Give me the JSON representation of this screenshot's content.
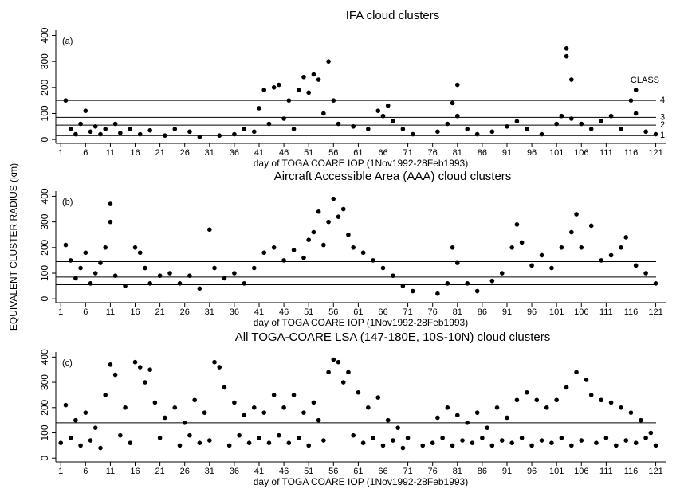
{
  "chart_data": [
    {
      "type": "scatter",
      "title": "IFA cloud clusters",
      "panel_label": "(a)",
      "ylabel": "EQUIVALENT CLUSTER RADIUS (km)",
      "xlabel": "day of TOGA COARE IOP (1Nov1992-28Feb1993)",
      "xlim": [
        0,
        123
      ],
      "ylim": [
        -15,
        420
      ],
      "xticks": [
        1,
        6,
        11,
        16,
        21,
        26,
        31,
        36,
        41,
        46,
        51,
        56,
        61,
        66,
        71,
        76,
        81,
        86,
        91,
        96,
        101,
        106,
        111,
        116,
        121
      ],
      "yticks": [
        0,
        100,
        200,
        300,
        400
      ],
      "hlines": [
        15,
        55,
        85,
        150
      ],
      "hline_labels": [
        "1",
        "2",
        "3",
        "4"
      ],
      "hline_title": "CLASS",
      "color": "#000000",
      "x": [
        2,
        3,
        4,
        5,
        6,
        7,
        8,
        9,
        10,
        12,
        13,
        15,
        17,
        19,
        22,
        24,
        27,
        29,
        33,
        36,
        38,
        40,
        41,
        42,
        43,
        44,
        45,
        46,
        47,
        48,
        49,
        50,
        51,
        52,
        53,
        54,
        55,
        56,
        57,
        60,
        63,
        65,
        66,
        67,
        68,
        70,
        72,
        77,
        79,
        80,
        81,
        81,
        83,
        85,
        88,
        91,
        93,
        95,
        98,
        101,
        102,
        103,
        103,
        104,
        104,
        106,
        108,
        110,
        112,
        114,
        116,
        117,
        117,
        119,
        121
      ],
      "values": [
        150,
        40,
        20,
        60,
        110,
        30,
        50,
        20,
        40,
        60,
        25,
        40,
        20,
        35,
        15,
        40,
        30,
        10,
        15,
        20,
        40,
        30,
        120,
        190,
        60,
        200,
        210,
        80,
        150,
        40,
        190,
        240,
        180,
        250,
        230,
        100,
        300,
        150,
        60,
        50,
        40,
        110,
        90,
        130,
        70,
        40,
        20,
        30,
        60,
        140,
        210,
        90,
        40,
        20,
        30,
        50,
        70,
        40,
        20,
        60,
        90,
        350,
        320,
        230,
        80,
        60,
        40,
        70,
        90,
        40,
        150,
        190,
        100,
        30,
        20
      ]
    },
    {
      "type": "scatter",
      "title": "Aircraft Accessible Area (AAA) cloud clusters",
      "panel_label": "(b)",
      "xlabel": "day of TOGA COARE IOP (1Nov1992-28Feb1993)",
      "xlim": [
        0,
        123
      ],
      "ylim": [
        -15,
        420
      ],
      "xticks": [
        1,
        6,
        11,
        16,
        21,
        26,
        31,
        36,
        41,
        46,
        51,
        56,
        61,
        66,
        71,
        76,
        81,
        86,
        91,
        96,
        101,
        106,
        111,
        116,
        121
      ],
      "yticks": [
        0,
        100,
        200,
        300,
        400
      ],
      "hlines": [
        55,
        85,
        145
      ],
      "color": "#000000",
      "x": [
        2,
        3,
        4,
        5,
        6,
        7,
        8,
        9,
        10,
        11,
        11,
        12,
        14,
        16,
        17,
        18,
        19,
        21,
        23,
        25,
        27,
        29,
        31,
        32,
        34,
        36,
        38,
        40,
        42,
        44,
        46,
        48,
        50,
        51,
        52,
        53,
        54,
        55,
        56,
        57,
        58,
        59,
        60,
        62,
        64,
        66,
        68,
        70,
        72,
        77,
        79,
        80,
        81,
        83,
        85,
        88,
        90,
        92,
        93,
        94,
        96,
        98,
        100,
        102,
        104,
        105,
        106,
        108,
        110,
        112,
        114,
        115,
        117,
        119,
        121
      ],
      "values": [
        210,
        150,
        80,
        120,
        180,
        60,
        100,
        140,
        200,
        370,
        300,
        90,
        50,
        200,
        180,
        120,
        60,
        90,
        100,
        60,
        90,
        40,
        270,
        120,
        80,
        100,
        60,
        120,
        180,
        200,
        150,
        190,
        160,
        230,
        260,
        340,
        210,
        300,
        390,
        320,
        350,
        250,
        200,
        180,
        150,
        120,
        90,
        50,
        30,
        20,
        60,
        200,
        140,
        60,
        30,
        70,
        100,
        200,
        290,
        220,
        130,
        170,
        120,
        200,
        260,
        330,
        200,
        285,
        150,
        170,
        200,
        240,
        130,
        100,
        60
      ]
    },
    {
      "type": "scatter",
      "title": "All TOGA-COARE LSA (147-180E, 10S-10N) cloud clusters",
      "panel_label": "(c)",
      "xlabel": "day of TOGA COARE IOP (1Nov1992-28Feb1993)",
      "xlim": [
        0,
        123
      ],
      "ylim": [
        -15,
        420
      ],
      "xticks": [
        1,
        6,
        11,
        16,
        21,
        26,
        31,
        36,
        41,
        46,
        51,
        56,
        61,
        66,
        71,
        76,
        81,
        86,
        91,
        96,
        101,
        106,
        111,
        116,
        121
      ],
      "yticks": [
        0,
        100,
        200,
        300,
        400
      ],
      "hlines": [
        140
      ],
      "color": "#000000",
      "x": [
        2,
        4,
        6,
        8,
        10,
        11,
        12,
        14,
        16,
        17,
        18,
        19,
        20,
        22,
        24,
        26,
        28,
        30,
        32,
        33,
        34,
        36,
        38,
        40,
        42,
        44,
        46,
        48,
        50,
        52,
        53,
        55,
        56,
        57,
        58,
        59,
        61,
        63,
        65,
        67,
        69,
        71,
        74,
        77,
        79,
        81,
        83,
        85,
        87,
        89,
        91,
        93,
        95,
        97,
        99,
        101,
        103,
        105,
        107,
        108,
        110,
        112,
        114,
        116,
        118,
        120,
        1,
        3,
        5,
        7,
        9,
        13,
        15,
        21,
        25,
        27,
        29,
        31,
        35,
        37,
        39,
        41,
        43,
        45,
        47,
        49,
        51,
        54,
        60,
        62,
        64,
        66,
        68,
        70,
        76,
        78,
        80,
        82,
        84,
        86,
        88,
        90,
        92,
        94,
        96,
        98,
        100,
        102,
        104,
        106,
        109,
        111,
        113,
        115,
        117,
        119,
        121
      ],
      "values": [
        210,
        150,
        180,
        120,
        250,
        370,
        330,
        200,
        380,
        360,
        300,
        350,
        220,
        160,
        200,
        140,
        230,
        180,
        380,
        360,
        280,
        220,
        170,
        200,
        180,
        250,
        200,
        250,
        180,
        220,
        150,
        340,
        390,
        380,
        300,
        340,
        260,
        200,
        240,
        150,
        120,
        80,
        50,
        160,
        200,
        170,
        140,
        180,
        120,
        200,
        160,
        230,
        260,
        230,
        200,
        230,
        280,
        340,
        310,
        250,
        230,
        220,
        200,
        180,
        150,
        100,
        60,
        80,
        50,
        70,
        40,
        90,
        60,
        80,
        50,
        90,
        60,
        70,
        50,
        90,
        60,
        80,
        60,
        90,
        60,
        80,
        50,
        70,
        90,
        60,
        80,
        50,
        70,
        40,
        60,
        80,
        50,
        70,
        60,
        80,
        50,
        70,
        60,
        80,
        50,
        70,
        60,
        80,
        50,
        70,
        60,
        80,
        50,
        70,
        60,
        80,
        50
      ]
    }
  ]
}
